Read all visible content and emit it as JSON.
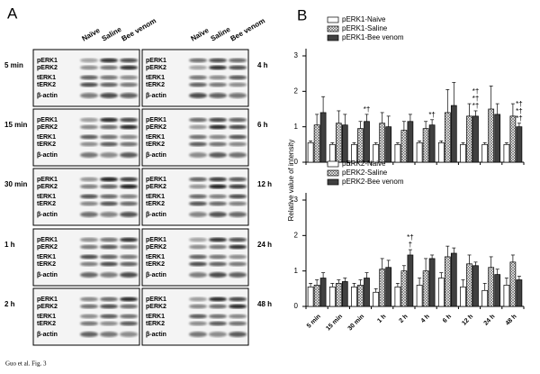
{
  "caption": "Guo et al. Fig. 3",
  "panel_a": {
    "label": "A",
    "lanes": [
      "Naïve",
      "Saline",
      "Bee venom"
    ],
    "bands": [
      "pERK1",
      "pERK2",
      "tERK1",
      "tERK2",
      "β-actin"
    ],
    "times_left": [
      "5 min",
      "15 min",
      "30 min",
      "1 h",
      "2 h"
    ],
    "times_right": [
      "4 h",
      "6 h",
      "12 h",
      "24 h",
      "48 h"
    ]
  },
  "panel_b": {
    "label": "B",
    "y_label": "Relative value of intensity"
  },
  "chart_data": [
    {
      "type": "bar",
      "ylim": [
        0,
        3
      ],
      "yticks": [
        0,
        1,
        2,
        3
      ],
      "legend": "upper left",
      "series": [
        {
          "name": "pERK1-Naive",
          "color": "#ffffff",
          "values": [
            0.55,
            0.5,
            0.5,
            0.5,
            0.5,
            0.55,
            0.55,
            0.5,
            0.5,
            0.5
          ],
          "errors": [
            0.05,
            0.05,
            0.05,
            0.05,
            0.05,
            0.05,
            0.05,
            0.05,
            0.05,
            0.05
          ]
        },
        {
          "name": "pERK1-Saline",
          "color": "#ffffff",
          "pattern": "crosshatch",
          "values": [
            1.05,
            1.1,
            0.95,
            1.1,
            0.9,
            0.95,
            1.4,
            1.3,
            1.5,
            1.3
          ],
          "errors": [
            0.3,
            0.35,
            0.2,
            0.3,
            0.25,
            0.2,
            0.65,
            0.35,
            0.65,
            0.35
          ]
        },
        {
          "name": "pERK1-Bee venom",
          "color": "#404040",
          "values": [
            1.4,
            1.05,
            1.15,
            1.0,
            1.15,
            1.05,
            1.6,
            1.3,
            1.35,
            1.0
          ],
          "errors": [
            0.45,
            0.3,
            0.2,
            0.3,
            0.2,
            0.15,
            0.65,
            0.15,
            0.3,
            0.1
          ]
        }
      ],
      "annotations": [
        null,
        null,
        [
          "*†"
        ],
        null,
        null,
        [
          "*†"
        ],
        null,
        [
          "*†",
          "*†",
          "*†"
        ],
        null,
        [
          "*†",
          "*†",
          "*†"
        ]
      ]
    },
    {
      "type": "bar",
      "ylim": [
        0,
        3
      ],
      "yticks": [
        0,
        1,
        2,
        3
      ],
      "legend": "upper left",
      "categories": [
        "5 min",
        "15 min",
        "30 min",
        "1 h",
        "2 h",
        "4 h",
        "6 h",
        "12 h",
        "24 h",
        "48 h"
      ],
      "series": [
        {
          "name": "pERK2-Naive",
          "color": "#ffffff",
          "values": [
            0.55,
            0.55,
            0.55,
            0.4,
            0.55,
            0.6,
            0.8,
            0.55,
            0.45,
            0.6
          ],
          "errors": [
            0.1,
            0.1,
            0.1,
            0.1,
            0.1,
            0.2,
            0.15,
            0.2,
            0.2,
            0.2
          ]
        },
        {
          "name": "pERK2-Saline",
          "color": "#ffffff",
          "pattern": "crosshatch",
          "values": [
            0.6,
            0.65,
            0.6,
            1.05,
            1.0,
            1.0,
            1.4,
            1.2,
            1.1,
            1.25
          ],
          "errors": [
            0.15,
            0.1,
            0.15,
            0.3,
            0.15,
            0.35,
            0.3,
            0.25,
            0.3,
            0.2
          ]
        },
        {
          "name": "pERK2-Bee venom",
          "color": "#404040",
          "values": [
            0.8,
            0.7,
            0.8,
            1.1,
            1.45,
            1.35,
            1.5,
            1.15,
            0.9,
            0.75
          ],
          "errors": [
            0.15,
            0.1,
            0.15,
            0.2,
            0.15,
            0.1,
            0.15,
            0.1,
            0.15,
            0.1
          ]
        }
      ],
      "annotations": [
        null,
        null,
        null,
        null,
        [
          "†",
          "*†"
        ],
        null,
        null,
        null,
        null,
        null
      ]
    }
  ]
}
